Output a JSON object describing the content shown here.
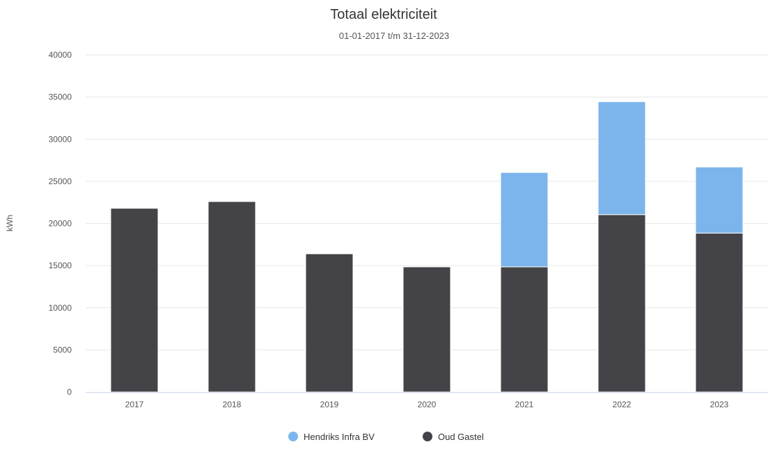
{
  "chart_data": {
    "type": "bar",
    "stacked": true,
    "title": "Totaal elektriciteit",
    "subtitle": "01-01-2017 t/m 31-12-2023",
    "xlabel": "",
    "ylabel": "kWh",
    "ylim": [
      0,
      40000
    ],
    "yticks": [
      "0",
      "5000",
      "10000",
      "15000",
      "20000",
      "25000",
      "30000",
      "35000",
      "40000"
    ],
    "grid": true,
    "legend_position": "bottom-center",
    "categories": [
      "2017",
      "2018",
      "2019",
      "2020",
      "2021",
      "2022",
      "2023"
    ],
    "series": [
      {
        "name": "Oud Gastel",
        "color": "#434348",
        "values": [
          21800,
          22600,
          16400,
          14850,
          14850,
          21050,
          18850
        ]
      },
      {
        "name": "Hendriks Infra BV",
        "color": "#7cb5ec",
        "values": [
          0,
          0,
          0,
          0,
          11200,
          13400,
          7850
        ]
      }
    ],
    "legend_order": [
      "Hendriks Infra BV",
      "Oud Gastel"
    ]
  }
}
